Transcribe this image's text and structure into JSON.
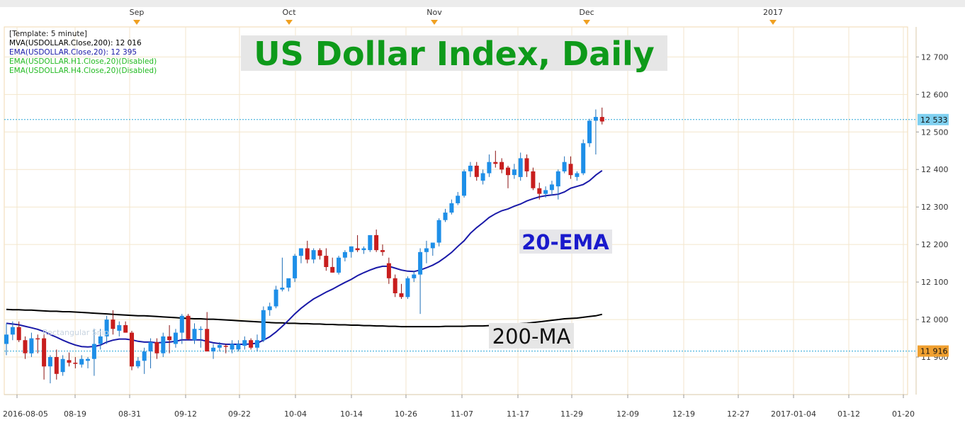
{
  "chart_data": {
    "type": "candlestick",
    "title": "US Dollar Index, Daily",
    "y_axis_position": "right",
    "ylim": [
      11800,
      12780
    ],
    "y_ticks": [
      {
        "value": 12700,
        "label": "12 700"
      },
      {
        "value": 12600,
        "label": "12 600"
      },
      {
        "value": 12500,
        "label": "12 500"
      },
      {
        "value": 12400,
        "label": "12 400"
      },
      {
        "value": 12300,
        "label": "12 300"
      },
      {
        "value": 12200,
        "label": "12 200"
      },
      {
        "value": 12100,
        "label": "12 100"
      },
      {
        "value": 12000,
        "label": "12 000"
      },
      {
        "value": 11900,
        "label": "11 900"
      }
    ],
    "x_tick_labels": [
      "2016-08-05",
      "08-19",
      "08-31",
      "09-12",
      "09-22",
      "10-04",
      "10-14",
      "10-26",
      "11-07",
      "11-17",
      "11-29",
      "12-09",
      "12-19",
      "12-27",
      "2017-01-04",
      "01-12",
      "01-20"
    ],
    "month_labels": [
      "Sep",
      "Oct",
      "Nov",
      "Dec",
      "2017"
    ],
    "legend_lines": [
      {
        "text": "[Template: 5 minute]",
        "color": "#1a1a1a"
      },
      {
        "text": "MVA(USDOLLAR.Close,200): 12 016",
        "color": "#000000"
      },
      {
        "text": "EMA(USDOLLAR.Close,20): 12 395",
        "color": "#1a1aa8"
      },
      {
        "text": "EMA(USDOLLAR.H1.Close,20)(Disabled)",
        "color": "#22bb22"
      },
      {
        "text": "EMA(USDOLLAR.H4.Close,20)(Disabled)",
        "color": "#22bb22"
      }
    ],
    "annotations": {
      "ema_label": "20-EMA",
      "ma_label": "200-MA",
      "watermark": "Rectangular Snip"
    },
    "price_markers": [
      {
        "value": 12533,
        "label": "12 533",
        "color": "#7fd0f0"
      },
      {
        "value": 11916,
        "label": "11 916",
        "color": "#f0a030"
      }
    ],
    "candles": [
      {
        "o": 11935,
        "h": 11990,
        "l": 11905,
        "c": 11960
      },
      {
        "o": 11960,
        "h": 11995,
        "l": 11945,
        "c": 11980
      },
      {
        "o": 11980,
        "h": 11995,
        "l": 11940,
        "c": 11945
      },
      {
        "o": 11945,
        "h": 11955,
        "l": 11895,
        "c": 11910
      },
      {
        "o": 11910,
        "h": 11965,
        "l": 11900,
        "c": 11950
      },
      {
        "o": 11950,
        "h": 11960,
        "l": 11910,
        "c": 11948
      },
      {
        "o": 11950,
        "h": 11962,
        "l": 11840,
        "c": 11875
      },
      {
        "o": 11875,
        "h": 11905,
        "l": 11830,
        "c": 11900
      },
      {
        "o": 11900,
        "h": 11920,
        "l": 11840,
        "c": 11855
      },
      {
        "o": 11860,
        "h": 11905,
        "l": 11850,
        "c": 11895
      },
      {
        "o": 11892,
        "h": 11912,
        "l": 11875,
        "c": 11885
      },
      {
        "o": 11885,
        "h": 11900,
        "l": 11870,
        "c": 11882
      },
      {
        "o": 11880,
        "h": 11905,
        "l": 11872,
        "c": 11895
      },
      {
        "o": 11890,
        "h": 11900,
        "l": 11870,
        "c": 11895
      },
      {
        "o": 11895,
        "h": 11975,
        "l": 11850,
        "c": 11935
      },
      {
        "o": 11935,
        "h": 11975,
        "l": 11920,
        "c": 11955
      },
      {
        "o": 11955,
        "h": 12010,
        "l": 11935,
        "c": 12000
      },
      {
        "o": 12000,
        "h": 12025,
        "l": 11960,
        "c": 11975
      },
      {
        "o": 11970,
        "h": 11995,
        "l": 11955,
        "c": 11985
      },
      {
        "o": 11985,
        "h": 11995,
        "l": 11965,
        "c": 11965
      },
      {
        "o": 11965,
        "h": 11970,
        "l": 11865,
        "c": 11875
      },
      {
        "o": 11875,
        "h": 11900,
        "l": 11870,
        "c": 11890
      },
      {
        "o": 11890,
        "h": 11925,
        "l": 11855,
        "c": 11915
      },
      {
        "o": 11915,
        "h": 11950,
        "l": 11870,
        "c": 11940
      },
      {
        "o": 11940,
        "h": 11950,
        "l": 11895,
        "c": 11910
      },
      {
        "o": 11910,
        "h": 11965,
        "l": 11900,
        "c": 11955
      },
      {
        "o": 11955,
        "h": 11985,
        "l": 11910,
        "c": 11945
      },
      {
        "o": 11935,
        "h": 11975,
        "l": 11925,
        "c": 11965
      },
      {
        "o": 11965,
        "h": 12015,
        "l": 11935,
        "c": 12010
      },
      {
        "o": 12010,
        "h": 12015,
        "l": 11945,
        "c": 11948
      },
      {
        "o": 11945,
        "h": 11990,
        "l": 11935,
        "c": 11975
      },
      {
        "o": 11975,
        "h": 11982,
        "l": 11925,
        "c": 11975
      },
      {
        "o": 11975,
        "h": 12020,
        "l": 11915,
        "c": 11915
      },
      {
        "o": 11915,
        "h": 11935,
        "l": 11895,
        "c": 11925
      },
      {
        "o": 11925,
        "h": 11940,
        "l": 11915,
        "c": 11932
      },
      {
        "o": 11930,
        "h": 11935,
        "l": 11910,
        "c": 11928
      },
      {
        "o": 11920,
        "h": 11945,
        "l": 11910,
        "c": 11935
      },
      {
        "o": 11920,
        "h": 11945,
        "l": 11915,
        "c": 11935
      },
      {
        "o": 11930,
        "h": 11955,
        "l": 11920,
        "c": 11945
      },
      {
        "o": 11945,
        "h": 11950,
        "l": 11920,
        "c": 11925
      },
      {
        "o": 11925,
        "h": 11960,
        "l": 11915,
        "c": 11945
      },
      {
        "o": 11945,
        "h": 12035,
        "l": 11940,
        "c": 12025
      },
      {
        "o": 12025,
        "h": 12045,
        "l": 12010,
        "c": 12035
      },
      {
        "o": 12035,
        "h": 12090,
        "l": 12030,
        "c": 12080
      },
      {
        "o": 12080,
        "h": 12165,
        "l": 12075,
        "c": 12085
      },
      {
        "o": 12085,
        "h": 12105,
        "l": 12075,
        "c": 12110
      },
      {
        "o": 12110,
        "h": 12175,
        "l": 12100,
        "c": 12170
      },
      {
        "o": 12170,
        "h": 12190,
        "l": 12150,
        "c": 12190
      },
      {
        "o": 12190,
        "h": 12210,
        "l": 12150,
        "c": 12160
      },
      {
        "o": 12160,
        "h": 12190,
        "l": 12150,
        "c": 12185
      },
      {
        "o": 12185,
        "h": 12190,
        "l": 12160,
        "c": 12170
      },
      {
        "o": 12170,
        "h": 12190,
        "l": 12130,
        "c": 12140
      },
      {
        "o": 12140,
        "h": 12165,
        "l": 12125,
        "c": 12125
      },
      {
        "o": 12125,
        "h": 12170,
        "l": 12120,
        "c": 12165
      },
      {
        "o": 12165,
        "h": 12185,
        "l": 12155,
        "c": 12180
      },
      {
        "o": 12180,
        "h": 12195,
        "l": 12165,
        "c": 12195
      },
      {
        "o": 12190,
        "h": 12225,
        "l": 12180,
        "c": 12185
      },
      {
        "o": 12185,
        "h": 12195,
        "l": 12175,
        "c": 12190
      },
      {
        "o": 12185,
        "h": 12225,
        "l": 12180,
        "c": 12225
      },
      {
        "o": 12225,
        "h": 12240,
        "l": 12180,
        "c": 12185
      },
      {
        "o": 12185,
        "h": 12200,
        "l": 12170,
        "c": 12180
      },
      {
        "o": 12150,
        "h": 12165,
        "l": 12095,
        "c": 12110
      },
      {
        "o": 12110,
        "h": 12120,
        "l": 12060,
        "c": 12070
      },
      {
        "o": 12070,
        "h": 12095,
        "l": 12055,
        "c": 12060
      },
      {
        "o": 12060,
        "h": 12115,
        "l": 12055,
        "c": 12110
      },
      {
        "o": 12110,
        "h": 12130,
        "l": 12100,
        "c": 12120
      },
      {
        "o": 12120,
        "h": 12190,
        "l": 12015,
        "c": 12180
      },
      {
        "o": 12180,
        "h": 12210,
        "l": 12150,
        "c": 12190
      },
      {
        "o": 12190,
        "h": 12205,
        "l": 12170,
        "c": 12205
      },
      {
        "o": 12205,
        "h": 12270,
        "l": 12195,
        "c": 12265
      },
      {
        "o": 12265,
        "h": 12295,
        "l": 12260,
        "c": 12285
      },
      {
        "o": 12285,
        "h": 12320,
        "l": 12280,
        "c": 12310
      },
      {
        "o": 12310,
        "h": 12340,
        "l": 12305,
        "c": 12330
      },
      {
        "o": 12330,
        "h": 12400,
        "l": 12325,
        "c": 12395
      },
      {
        "o": 12395,
        "h": 12420,
        "l": 12380,
        "c": 12410
      },
      {
        "o": 12410,
        "h": 12420,
        "l": 12370,
        "c": 12380
      },
      {
        "o": 12370,
        "h": 12400,
        "l": 12360,
        "c": 12390
      },
      {
        "o": 12390,
        "h": 12440,
        "l": 12380,
        "c": 12420
      },
      {
        "o": 12420,
        "h": 12450,
        "l": 12405,
        "c": 12415
      },
      {
        "o": 12420,
        "h": 12430,
        "l": 12390,
        "c": 12400
      },
      {
        "o": 12405,
        "h": 12410,
        "l": 12350,
        "c": 12385
      },
      {
        "o": 12385,
        "h": 12415,
        "l": 12375,
        "c": 12400
      },
      {
        "o": 12380,
        "h": 12445,
        "l": 12370,
        "c": 12430
      },
      {
        "o": 12430,
        "h": 12440,
        "l": 12380,
        "c": 12395
      },
      {
        "o": 12395,
        "h": 12405,
        "l": 12345,
        "c": 12350
      },
      {
        "o": 12350,
        "h": 12365,
        "l": 12320,
        "c": 12335
      },
      {
        "o": 12335,
        "h": 12355,
        "l": 12325,
        "c": 12345
      },
      {
        "o": 12345,
        "h": 12370,
        "l": 12330,
        "c": 12360
      },
      {
        "o": 12355,
        "h": 12400,
        "l": 12320,
        "c": 12395
      },
      {
        "o": 12395,
        "h": 12435,
        "l": 12390,
        "c": 12420
      },
      {
        "o": 12415,
        "h": 12435,
        "l": 12375,
        "c": 12385
      },
      {
        "o": 12380,
        "h": 12395,
        "l": 12370,
        "c": 12390
      },
      {
        "o": 12390,
        "h": 12480,
        "l": 12385,
        "c": 12470
      },
      {
        "o": 12470,
        "h": 12535,
        "l": 12460,
        "c": 12530
      },
      {
        "o": 12530,
        "h": 12560,
        "l": 12440,
        "c": 12540
      },
      {
        "o": 12540,
        "h": 12565,
        "l": 12520,
        "c": 12528
      }
    ],
    "series": [
      {
        "name": "EMA(USDOLLAR.Close,20)",
        "color": "#1a1aa8",
        "values": [
          11990,
          11988,
          11986,
          11982,
          11978,
          11974,
          11968,
          11960,
          11953,
          11945,
          11938,
          11932,
          11928,
          11927,
          11928,
          11932,
          11940,
          11945,
          11948,
          11948,
          11946,
          11942,
          11940,
          11940,
          11938,
          11939,
          11940,
          11942,
          11946,
          11946,
          11946,
          11946,
          11942,
          11938,
          11936,
          11934,
          11934,
          11934,
          11934,
          11935,
          11937,
          11945,
          11954,
          11967,
          11982,
          11998,
          12015,
          12030,
          12043,
          12055,
          12064,
          12073,
          12081,
          12090,
          12099,
          12107,
          12117,
          12125,
          12132,
          12138,
          12142,
          12142,
          12137,
          12132,
          12129,
          12128,
          12132,
          12138,
          12145,
          12154,
          12166,
          12179,
          12195,
          12210,
          12230,
          12245,
          12258,
          12272,
          12282,
          12290,
          12295,
          12302,
          12308,
          12316,
          12322,
          12327,
          12330,
          12332,
          12334,
          12340,
          12350,
          12355,
          12360,
          12370,
          12385,
          12397
        ]
      },
      {
        "name": "MVA(USDOLLAR.Close,200)",
        "color": "#000000",
        "values": [
          12027,
          12026,
          12026,
          12025,
          12025,
          12024,
          12023,
          12022,
          12022,
          12021,
          12021,
          12020,
          12019,
          12018,
          12017,
          12016,
          12015,
          12014,
          12013,
          12012,
          12011,
          12010,
          12010,
          12009,
          12008,
          12007,
          12006,
          12005,
          12004,
          12003,
          12002,
          12002,
          12001,
          12001,
          12000,
          11999,
          11998,
          11997,
          11996,
          11995,
          11994,
          11993,
          11992,
          11991,
          11991,
          11990,
          11990,
          11989,
          11989,
          11988,
          11988,
          11987,
          11987,
          11986,
          11986,
          11985,
          11985,
          11984,
          11984,
          11983,
          11983,
          11982,
          11982,
          11981,
          11981,
          11981,
          11981,
          11981,
          11981,
          11981,
          11982,
          11982,
          11982,
          11982,
          11983,
          11983,
          11983,
          11984,
          11985,
          11986,
          11987,
          11988,
          11989,
          11990,
          11992,
          11994,
          11996,
          11998,
          12000,
          12002,
          12003,
          12004,
          12006,
          12008,
          12010,
          12014
        ]
      }
    ]
  }
}
